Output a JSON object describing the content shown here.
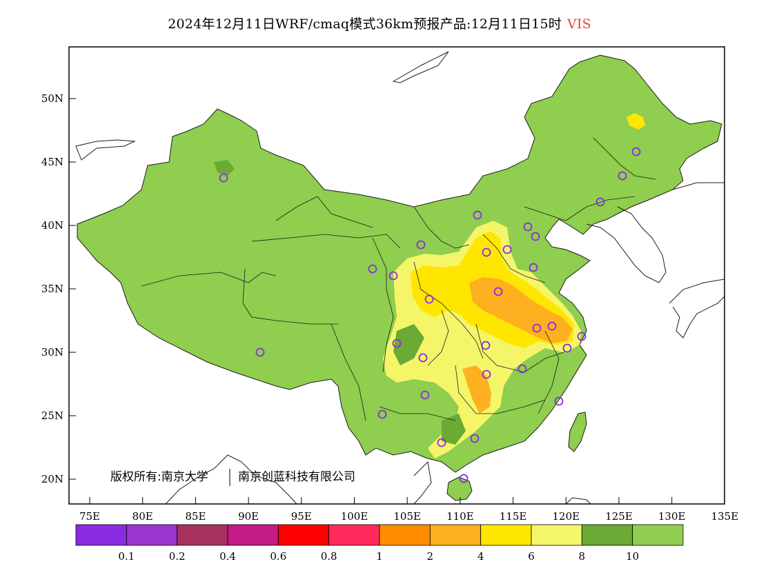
{
  "title": {
    "main": "2024年12月11日WRF/cmaq模式36km预报产品:12月11日15时",
    "variable": "VIS"
  },
  "axes": {
    "lat_ticks": [
      "50N",
      "45N",
      "40N",
      "35N",
      "30N",
      "25N",
      "20N"
    ],
    "lon_ticks": [
      "75E",
      "80E",
      "85E",
      "90E",
      "95E",
      "100E",
      "105E",
      "110E",
      "115E",
      "120E",
      "125E",
      "130E",
      "135E"
    ]
  },
  "copyright": {
    "text_left": "版权所有:南京大学",
    "text_right": "南京创蓝科技有限公司"
  },
  "colorbar": {
    "colors": [
      "#8a2be2",
      "#9b35cf",
      "#a8305e",
      "#c21a86",
      "#ff0000",
      "#ff2a5c",
      "#ff8c00",
      "#ffb020",
      "#ffe600",
      "#f5f56a",
      "#6aaa35",
      "#8fce4e"
    ],
    "labels": [
      "0.1",
      "0.2",
      "0.4",
      "0.6",
      "0.8",
      "1",
      "2",
      "4",
      "6",
      "8",
      "10"
    ]
  },
  "map": {
    "land_color": "#8fce4e",
    "station_color": "#8a2be2"
  }
}
